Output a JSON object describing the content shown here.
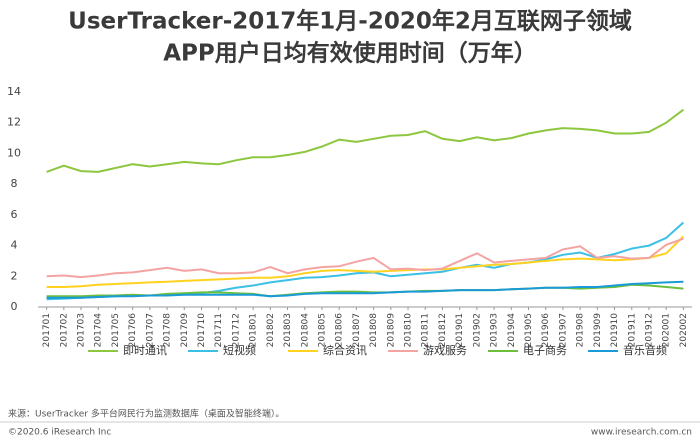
{
  "chart_data": {
    "type": "line",
    "title": [
      "UserTracker-2017年1月-2020年2月互联网子领域",
      "APP用户日均有效使用时间（万年）"
    ],
    "categories": [
      "201701",
      "201702",
      "201703",
      "201704",
      "201705",
      "201706",
      "201707",
      "201708",
      "201709",
      "201710",
      "201711",
      "201712",
      "201801",
      "201802",
      "201803",
      "201804",
      "201805",
      "201806",
      "201807",
      "201808",
      "201809",
      "201810",
      "201811",
      "201812",
      "201901",
      "201902",
      "201903",
      "201904",
      "201905",
      "201906",
      "201907",
      "201908",
      "201909",
      "201910",
      "201911",
      "201912",
      "202001",
      "202002"
    ],
    "series": [
      {
        "name": "即时通讯",
        "color": "#8dc63f",
        "values": [
          8.8,
          9.2,
          8.85,
          8.8,
          9.05,
          9.3,
          9.15,
          9.3,
          9.45,
          9.35,
          9.3,
          9.55,
          9.75,
          9.75,
          9.9,
          10.1,
          10.45,
          10.9,
          10.75,
          10.95,
          11.15,
          11.2,
          11.45,
          10.95,
          10.8,
          11.05,
          10.85,
          11.0,
          11.3,
          11.5,
          11.65,
          11.6,
          11.5,
          11.3,
          11.3,
          11.4,
          12.0,
          12.85
        ]
      },
      {
        "name": "短视频",
        "color": "#3cc0e6",
        "values": [
          0.5,
          0.55,
          0.6,
          0.65,
          0.7,
          0.75,
          0.75,
          0.8,
          0.85,
          0.9,
          1.05,
          1.25,
          1.4,
          1.6,
          1.75,
          1.9,
          1.95,
          2.05,
          2.2,
          2.25,
          2.0,
          2.1,
          2.2,
          2.3,
          2.55,
          2.75,
          2.55,
          2.8,
          2.9,
          3.1,
          3.4,
          3.55,
          3.2,
          3.45,
          3.8,
          4.0,
          4.5,
          5.5
        ]
      },
      {
        "name": "综合资讯",
        "color": "#ffd21f",
        "values": [
          1.3,
          1.3,
          1.35,
          1.45,
          1.5,
          1.55,
          1.6,
          1.65,
          1.7,
          1.75,
          1.8,
          1.85,
          1.9,
          1.9,
          2.0,
          2.2,
          2.35,
          2.4,
          2.35,
          2.3,
          2.35,
          2.4,
          2.45,
          2.45,
          2.55,
          2.65,
          2.75,
          2.8,
          2.9,
          3.0,
          3.1,
          3.15,
          3.1,
          3.05,
          3.1,
          3.2,
          3.5,
          4.6
        ]
      },
      {
        "name": "游戏服务",
        "color": "#f4a3a3",
        "values": [
          2.0,
          2.05,
          1.95,
          2.05,
          2.2,
          2.25,
          2.4,
          2.55,
          2.35,
          2.45,
          2.2,
          2.2,
          2.25,
          2.6,
          2.2,
          2.45,
          2.6,
          2.65,
          2.95,
          3.2,
          2.45,
          2.5,
          2.4,
          2.5,
          3.0,
          3.5,
          2.9,
          3.0,
          3.1,
          3.2,
          3.75,
          3.95,
          3.2,
          3.3,
          3.15,
          3.2,
          4.05,
          4.45
        ]
      },
      {
        "name": "电子商务",
        "color": "#6cbf3c",
        "values": [
          0.7,
          0.7,
          0.7,
          0.75,
          0.75,
          0.8,
          0.75,
          0.85,
          0.9,
          0.95,
          0.95,
          0.9,
          0.85,
          0.7,
          0.8,
          0.9,
          0.95,
          1.0,
          1.0,
          0.95,
          0.95,
          1.0,
          1.05,
          1.05,
          1.1,
          1.1,
          1.1,
          1.15,
          1.2,
          1.25,
          1.25,
          1.2,
          1.25,
          1.3,
          1.45,
          1.4,
          1.3,
          1.2
        ]
      },
      {
        "name": "音乐音频",
        "color": "#1a9ad6",
        "values": [
          0.6,
          0.6,
          0.6,
          0.65,
          0.7,
          0.7,
          0.75,
          0.75,
          0.8,
          0.8,
          0.8,
          0.8,
          0.8,
          0.7,
          0.75,
          0.85,
          0.9,
          0.9,
          0.9,
          0.9,
          0.95,
          1.0,
          1.0,
          1.05,
          1.1,
          1.1,
          1.1,
          1.15,
          1.2,
          1.25,
          1.25,
          1.3,
          1.3,
          1.4,
          1.5,
          1.55,
          1.6,
          1.65
        ]
      }
    ],
    "ylim": [
      0,
      14
    ],
    "yticks": [
      0,
      2,
      4,
      6,
      8,
      10,
      12,
      14
    ],
    "grid": false,
    "legend": "bottom",
    "source": "来源：UserTracker 多平台网民行为监测数据库（桌面及智能终端）。",
    "copyright": "©2020.6 iResearch Inc",
    "website": "www.iresearch.com.cn"
  }
}
